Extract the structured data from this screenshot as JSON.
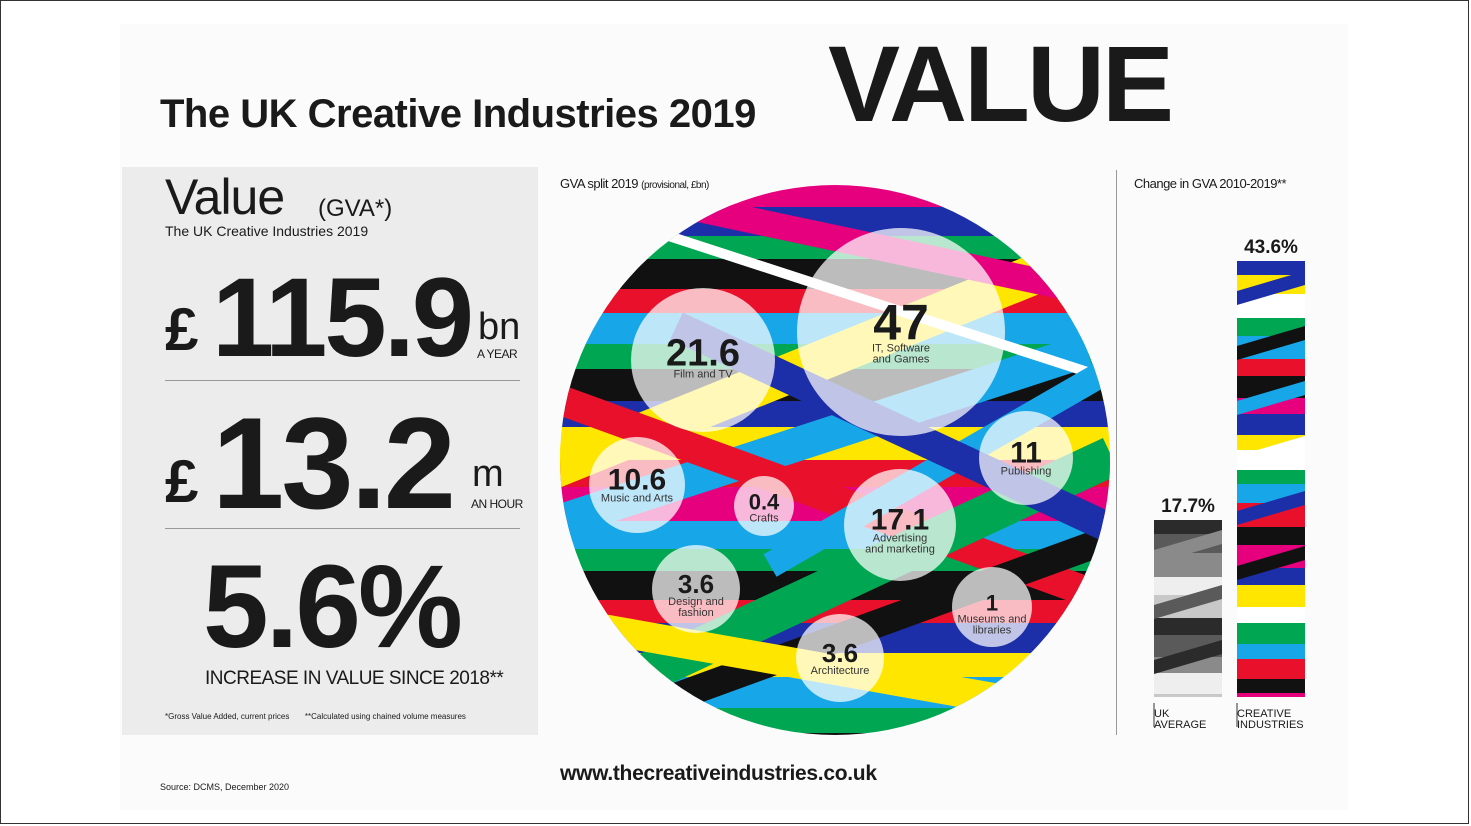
{
  "header": {
    "title": "The UK Creative Industries 2019",
    "title_big": "VALUE"
  },
  "value_panel": {
    "heading": "Value",
    "heading_suffix": "(GVA*)",
    "subheading": "The UK Creative Industries 2019",
    "stat1": {
      "currency": "£",
      "value": "115.9",
      "unit": "bn",
      "caption": "A YEAR"
    },
    "stat2": {
      "currency": "£",
      "value": "13.2",
      "unit": "m",
      "caption": "AN HOUR"
    },
    "stat3": {
      "value": "5.6%",
      "caption": "INCREASE IN VALUE SINCE 2018**"
    },
    "footnote1": "*Gross Value Added, current prices",
    "footnote2": "**Calculated using chained volume measures"
  },
  "pie_title": "GVA split 2019",
  "pie_title_note": "(provisional, £bn)",
  "change_title": "Change in GVA 2010-2019**",
  "footer": {
    "url": "www.thecreativeindustries.co.uk",
    "source": "Source: DCMS, December 2020"
  },
  "chart_data": [
    {
      "type": "bubble",
      "title": "GVA split 2019 (provisional, £bn)",
      "categories": [
        "Film and TV",
        "IT, Software and Games",
        "Publishing",
        "Music and Arts",
        "Crafts",
        "Advertising and marketing",
        "Design and fashion",
        "Museums and libraries",
        "Architecture"
      ],
      "values": [
        21.6,
        47,
        11,
        10.6,
        0.4,
        17.1,
        3.6,
        1,
        3.6
      ],
      "value_labels": [
        "21.6",
        "47",
        "11",
        "10.6",
        "0.4",
        "17.1",
        "3.6",
        "1",
        "3.6"
      ]
    },
    {
      "type": "bar",
      "title": "Change in GVA 2010-2019**",
      "categories": [
        "UK AVERAGE",
        "CREATIVE INDUSTRIES"
      ],
      "values": [
        17.7,
        43.6
      ],
      "value_labels": [
        "17.7%",
        "43.6%"
      ]
    }
  ],
  "colors": {
    "stripes": [
      "#e8102a",
      "#1d2fa8",
      "#00a651",
      "#111111",
      "#ffe600",
      "#17a6e8",
      "#e6007e",
      "#ffffff"
    ],
    "bubble_fill": "#ffffff",
    "grey_stripes": [
      "#2b2b2b",
      "#8a8a8a",
      "#c8c8c8",
      "#5a5a5a",
      "#eeeeee"
    ]
  }
}
